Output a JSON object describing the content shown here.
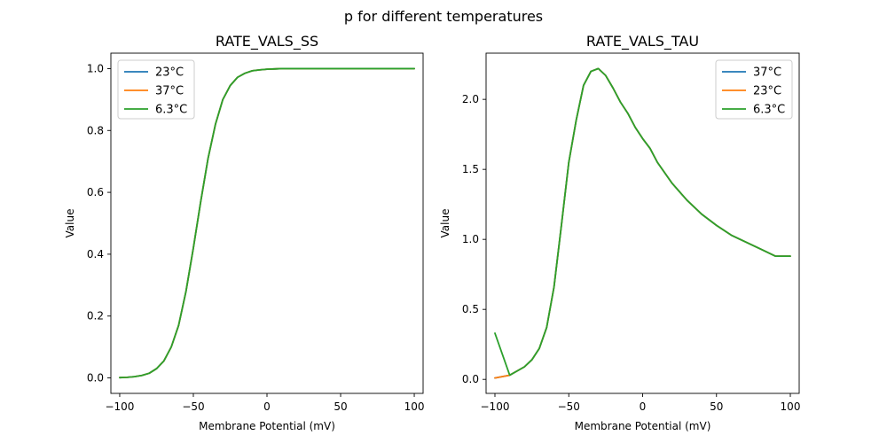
{
  "figure": {
    "suptitle": "p for different temperatures"
  },
  "chart_data": [
    {
      "type": "line",
      "title": "RATE_VALS_SS",
      "xlabel": "Membrane Potential (mV)",
      "ylabel": "Value",
      "xlim": [
        -106,
        106
      ],
      "ylim": [
        -0.05,
        1.05
      ],
      "xticks": [
        -100,
        -50,
        0,
        50,
        100
      ],
      "yticks": [
        0.0,
        0.2,
        0.4,
        0.6,
        0.8,
        1.0
      ],
      "xtick_labels": [
        "−100",
        "−50",
        "0",
        "50",
        "100"
      ],
      "ytick_labels": [
        "0.0",
        "0.2",
        "0.4",
        "0.6",
        "0.8",
        "1.0"
      ],
      "grid": false,
      "legend_position": "top-left",
      "x": [
        -100,
        -95,
        -90,
        -85,
        -80,
        -75,
        -70,
        -65,
        -60,
        -55,
        -50,
        -45,
        -40,
        -35,
        -30,
        -25,
        -20,
        -15,
        -10,
        -5,
        0,
        5,
        10,
        20,
        30,
        40,
        50,
        60,
        70,
        80,
        90,
        100
      ],
      "series": [
        {
          "name": "23°C",
          "color": "#1f77b4",
          "values": [
            0.001,
            0.002,
            0.004,
            0.008,
            0.015,
            0.03,
            0.055,
            0.1,
            0.17,
            0.28,
            0.42,
            0.57,
            0.71,
            0.82,
            0.9,
            0.945,
            0.972,
            0.985,
            0.993,
            0.996,
            0.998,
            0.999,
            1.0,
            1.0,
            1.0,
            1.0,
            1.0,
            1.0,
            1.0,
            1.0,
            1.0,
            1.0
          ]
        },
        {
          "name": "37°C",
          "color": "#ff7f0e",
          "values": [
            0.001,
            0.002,
            0.004,
            0.008,
            0.015,
            0.03,
            0.055,
            0.1,
            0.17,
            0.28,
            0.42,
            0.57,
            0.71,
            0.82,
            0.9,
            0.945,
            0.972,
            0.985,
            0.993,
            0.996,
            0.998,
            0.999,
            1.0,
            1.0,
            1.0,
            1.0,
            1.0,
            1.0,
            1.0,
            1.0,
            1.0,
            1.0
          ]
        },
        {
          "name": "6.3°C",
          "color": "#2ca02c",
          "values": [
            0.001,
            0.002,
            0.004,
            0.008,
            0.015,
            0.03,
            0.055,
            0.1,
            0.17,
            0.28,
            0.42,
            0.57,
            0.71,
            0.82,
            0.9,
            0.945,
            0.972,
            0.985,
            0.993,
            0.996,
            0.998,
            0.999,
            1.0,
            1.0,
            1.0,
            1.0,
            1.0,
            1.0,
            1.0,
            1.0,
            1.0,
            1.0
          ]
        }
      ]
    },
    {
      "type": "line",
      "title": "RATE_VALS_TAU",
      "xlabel": "Membrane Potential (mV)",
      "ylabel": "Value",
      "xlim": [
        -106,
        106
      ],
      "ylim": [
        -0.1,
        2.33
      ],
      "xticks": [
        -100,
        -50,
        0,
        50,
        100
      ],
      "yticks": [
        0.0,
        0.5,
        1.0,
        1.5,
        2.0
      ],
      "xtick_labels": [
        "−100",
        "−50",
        "0",
        "50",
        "100"
      ],
      "ytick_labels": [
        "0.0",
        "0.5",
        "1.0",
        "1.5",
        "2.0"
      ],
      "grid": false,
      "legend_position": "top-right",
      "series": [
        {
          "name": "37°C",
          "color": "#1f77b4",
          "x": [
            -100,
            -90,
            -80,
            -75,
            -70,
            -65,
            -60,
            -55,
            -50,
            -45,
            -40,
            -35,
            -30,
            -25,
            -20,
            -15,
            -10,
            -5,
            0,
            5,
            10,
            20,
            30,
            40,
            50,
            60,
            70,
            80,
            90,
            100
          ],
          "values": [
            0.01,
            0.03,
            0.09,
            0.14,
            0.22,
            0.37,
            0.66,
            1.1,
            1.55,
            1.85,
            2.1,
            2.2,
            2.22,
            2.17,
            2.08,
            1.98,
            1.9,
            1.8,
            1.72,
            1.65,
            1.55,
            1.4,
            1.28,
            1.18,
            1.1,
            1.03,
            0.98,
            0.93,
            0.88,
            0.88
          ]
        },
        {
          "name": "23°C",
          "color": "#ff7f0e",
          "x": [
            -100,
            -90,
            -80,
            -75,
            -70,
            -65,
            -60,
            -55,
            -50,
            -45,
            -40,
            -35,
            -30,
            -25,
            -20,
            -15,
            -10,
            -5,
            0,
            5,
            10,
            20,
            30,
            40,
            50,
            60,
            70,
            80,
            90,
            100
          ],
          "values": [
            0.01,
            0.03,
            0.09,
            0.14,
            0.22,
            0.37,
            0.66,
            1.1,
            1.55,
            1.85,
            2.1,
            2.2,
            2.22,
            2.17,
            2.08,
            1.98,
            1.9,
            1.8,
            1.72,
            1.65,
            1.55,
            1.4,
            1.28,
            1.18,
            1.1,
            1.03,
            0.98,
            0.93,
            0.88,
            0.88
          ]
        },
        {
          "name": "6.3°C",
          "color": "#2ca02c",
          "x": [
            -100,
            -90,
            -85,
            -80,
            -75,
            -70,
            -65,
            -60,
            -55,
            -50,
            -45,
            -40,
            -35,
            -30,
            -25,
            -20,
            -15,
            -10,
            -5,
            0,
            5,
            10,
            20,
            30,
            40,
            50,
            60,
            70,
            80,
            90,
            100
          ],
          "values": [
            0.33,
            0.03,
            0.06,
            0.09,
            0.14,
            0.22,
            0.37,
            0.66,
            1.1,
            1.55,
            1.85,
            2.1,
            2.2,
            2.22,
            2.17,
            2.08,
            1.98,
            1.9,
            1.8,
            1.72,
            1.65,
            1.55,
            1.4,
            1.28,
            1.18,
            1.1,
            1.03,
            0.98,
            0.93,
            0.88,
            0.88
          ]
        }
      ]
    }
  ]
}
